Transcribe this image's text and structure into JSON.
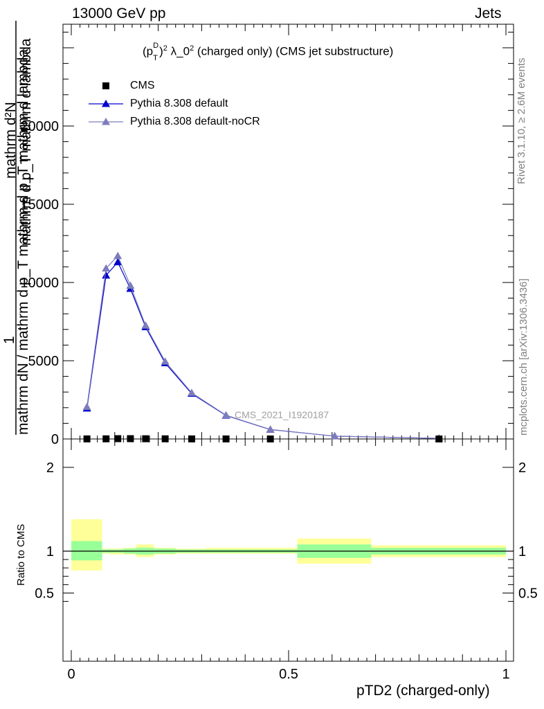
{
  "header": {
    "left": "13000 GeV pp",
    "right": "Jets"
  },
  "side_labels": {
    "rivet": "Rivet 3.1.10, ≥ 2.6M events",
    "mcplots": "mcplots.cern.ch [arXiv:1306.3436]"
  },
  "chart_data": [
    {
      "type": "line",
      "title": "(p_T^D)^2 λ_0^2 (charged only) (CMS jet substructure)",
      "title_parts": {
        "pre": "(p",
        "sup": "D",
        "sub": "T",
        "mid": ")",
        "sup2": "2",
        "post": " λ_0",
        "sup3": "2",
        "tail": " (charged only) (CMS jet substructure)"
      },
      "ylabel_stack": [
        "1",
        "mathrm dN / mathrm d p_T mathrm d p_T mathrm d lambda",
        "mathrm d^2N"
      ],
      "ylabel_lines": {
        "numerator": "mathrm d²N",
        "denominator": "mathrm d p_T mathrm d lambda",
        "left_top": "1",
        "left_bottom": "mathrm dN / mathrm d p_T mathrm d p_T mathrm d lambda"
      },
      "xlim": [
        0,
        1
      ],
      "ylim": [
        0,
        20000
      ],
      "yticks": [
        "0",
        "5000",
        "10000",
        "15000",
        "20000"
      ],
      "watermark": "CMS_2021_I1920187",
      "legend_position": "top-left",
      "series": [
        {
          "name": "CMS",
          "marker": "square",
          "color": "#000000",
          "x": [
            0.036,
            0.08,
            0.107,
            0.136,
            0.171,
            0.216,
            0.277,
            0.356,
            0.458,
            0.846
          ],
          "y": [
            5,
            10,
            20,
            20,
            15,
            10,
            5,
            3,
            1,
            0
          ]
        },
        {
          "name": "Pythia 8.308 default",
          "marker": "triangle",
          "color": "#0000cc",
          "x": [
            0.036,
            0.08,
            0.107,
            0.136,
            0.171,
            0.216,
            0.277,
            0.356,
            0.458,
            0.606,
            0.846
          ],
          "y": [
            1950,
            10450,
            11300,
            9600,
            7150,
            4850,
            2900,
            1500,
            600,
            180,
            40
          ]
        },
        {
          "name": "Pythia 8.308 default-noCR",
          "marker": "triangle",
          "color": "#7d7dbc",
          "x": [
            0.036,
            0.08,
            0.107,
            0.136,
            0.171,
            0.216,
            0.277,
            0.356,
            0.458,
            0.606,
            0.846
          ],
          "y": [
            2050,
            10900,
            11700,
            9800,
            7250,
            4950,
            2950,
            1520,
            610,
            180,
            40
          ]
        }
      ]
    },
    {
      "type": "area",
      "ylabel": "Ratio to CMS",
      "xlabel": "pTD2 (charged-only)",
      "xlim": [
        0,
        1
      ],
      "ylim": [
        0.38,
        2.3
      ],
      "yticks": [
        "0.5",
        "1",
        "2"
      ],
      "xticks": [
        "0",
        "0.5",
        "1"
      ],
      "colors": {
        "yellow": "#ffff99",
        "green": "#99ff99",
        "line": "#000000"
      },
      "bands": [
        {
          "x0": 0.0,
          "x1": 0.071,
          "y_lo": 0.77,
          "y_hi": 1.38,
          "g_lo": 0.89,
          "g_hi": 1.12
        },
        {
          "x0": 0.071,
          "x1": 0.09,
          "y_lo": 0.97,
          "y_hi": 1.03,
          "g_lo": 0.98,
          "g_hi": 1.02
        },
        {
          "x0": 0.09,
          "x1": 0.12,
          "y_lo": 0.96,
          "y_hi": 1.03,
          "g_lo": 0.98,
          "g_hi": 1.02
        },
        {
          "x0": 0.12,
          "x1": 0.149,
          "y_lo": 0.96,
          "y_hi": 1.04,
          "g_lo": 0.97,
          "g_hi": 1.03
        },
        {
          "x0": 0.149,
          "x1": 0.19,
          "y_lo": 0.93,
          "y_hi": 1.08,
          "g_lo": 0.96,
          "g_hi": 1.04
        },
        {
          "x0": 0.19,
          "x1": 0.24,
          "y_lo": 0.96,
          "y_hi": 1.04,
          "g_lo": 0.97,
          "g_hi": 1.03
        },
        {
          "x0": 0.24,
          "x1": 0.31,
          "y_lo": 0.97,
          "y_hi": 1.03,
          "g_lo": 0.98,
          "g_hi": 1.02
        },
        {
          "x0": 0.31,
          "x1": 0.52,
          "y_lo": 0.97,
          "y_hi": 1.04,
          "g_lo": 0.98,
          "g_hi": 1.02
        },
        {
          "x0": 0.52,
          "x1": 0.69,
          "y_lo": 0.85,
          "y_hi": 1.15,
          "g_lo": 0.92,
          "g_hi": 1.08
        },
        {
          "x0": 0.69,
          "x1": 1.0,
          "y_lo": 0.93,
          "y_hi": 1.07,
          "g_lo": 0.96,
          "g_hi": 1.04
        }
      ]
    }
  ]
}
